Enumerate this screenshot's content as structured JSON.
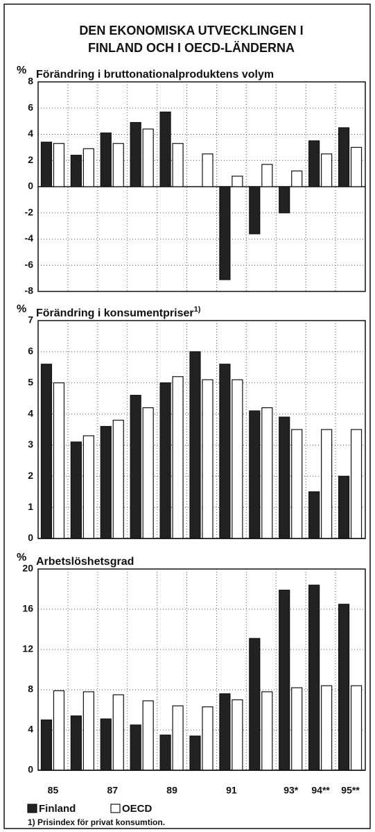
{
  "title": [
    "DEN EKONOMISKA UTVECKLINGEN I",
    "FINLAND OCH I OECD-LÄNDERNA"
  ],
  "categories": [
    "85",
    null,
    "87",
    null,
    "89",
    null,
    "91",
    null,
    "93*",
    "94**",
    "95**"
  ],
  "chart_data": [
    {
      "type": "bar",
      "title": "Förändring i bruttonationalproduktens volym",
      "ylabel": "%",
      "ylim": [
        -8,
        8
      ],
      "yticks": [
        -8,
        -6,
        -4,
        -2,
        0,
        2,
        4,
        6,
        8
      ],
      "grid": true,
      "series": [
        {
          "name": "Finland",
          "color": "#222222",
          "values": [
            3.4,
            2.4,
            4.1,
            4.9,
            5.7,
            0,
            -7.1,
            -3.6,
            -2.0,
            3.5,
            4.5
          ]
        },
        {
          "name": "OECD",
          "color": "#ffffff",
          "values": [
            3.3,
            2.9,
            3.3,
            4.4,
            3.3,
            2.5,
            0.8,
            1.7,
            1.2,
            2.5,
            3.0
          ]
        }
      ]
    },
    {
      "type": "bar",
      "title": "Förändring i konsumentpriser",
      "title_note": "1)",
      "ylabel": "%",
      "ylim": [
        0,
        7
      ],
      "yticks": [
        0,
        1,
        2,
        3,
        4,
        5,
        6,
        7
      ],
      "grid": true,
      "series": [
        {
          "name": "Finland",
          "color": "#222222",
          "values": [
            5.6,
            3.1,
            3.6,
            4.6,
            5.0,
            6.0,
            5.6,
            4.1,
            3.9,
            1.5,
            2.0
          ]
        },
        {
          "name": "OECD",
          "color": "#ffffff",
          "values": [
            5.0,
            3.3,
            3.8,
            4.2,
            5.2,
            5.1,
            5.1,
            4.2,
            3.5,
            3.5,
            3.5
          ]
        }
      ]
    },
    {
      "type": "bar",
      "title": "Arbetslöshetsgrad",
      "ylabel": "%",
      "ylim": [
        0,
        20
      ],
      "yticks": [
        0,
        4,
        8,
        12,
        16,
        20
      ],
      "grid": true,
      "series": [
        {
          "name": "Finland",
          "color": "#222222",
          "values": [
            5.0,
            5.4,
            5.1,
            4.5,
            3.5,
            3.4,
            7.6,
            13.1,
            17.9,
            18.4,
            16.5
          ]
        },
        {
          "name": "OECD",
          "color": "#ffffff",
          "values": [
            7.9,
            7.8,
            7.5,
            6.9,
            6.4,
            6.3,
            7.0,
            7.8,
            8.2,
            8.4,
            8.4
          ]
        }
      ]
    }
  ],
  "footnote": "1) Prisindex för privat konsumtion."
}
